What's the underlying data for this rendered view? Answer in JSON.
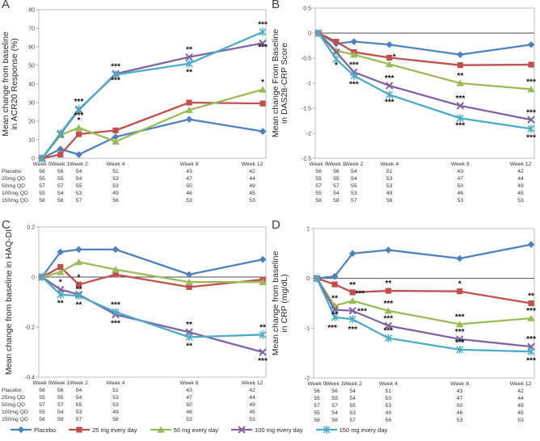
{
  "panels": {
    "a": {
      "letter": "A"
    },
    "b": {
      "letter": "B"
    },
    "c": {
      "letter": "C"
    },
    "d": {
      "letter": "D"
    }
  },
  "series_styles": {
    "placebo": {
      "color": "#4F81BD",
      "marker": "diamond"
    },
    "d25": {
      "color": "#C0504D",
      "marker": "square"
    },
    "d50": {
      "color": "#9BBB59",
      "marker": "triangle"
    },
    "d100": {
      "color": "#8064A2",
      "marker": "x"
    },
    "d150": {
      "color": "#4BACC6",
      "marker": "asterisk"
    }
  },
  "legend": {
    "items": [
      {
        "key": "placebo",
        "label": "Placebo"
      },
      {
        "key": "d25",
        "label": "25 mg every day"
      },
      {
        "key": "d50",
        "label": "50 mg every day"
      },
      {
        "key": "d100",
        "label": "100 mg every day"
      },
      {
        "key": "d150",
        "label": "150 mg every day"
      }
    ]
  },
  "table": {
    "row_labels": [
      "Placebo",
      "25mg QD",
      "50mg QD",
      "100mg QD",
      "150mg QD"
    ],
    "columns": [
      "Week 0",
      "Week 1",
      "Week 2",
      "Week 4",
      "Week 8",
      "Week 12"
    ],
    "rows": [
      [
        56,
        56,
        54,
        51,
        43,
        42
      ],
      [
        55,
        55,
        54,
        53,
        47,
        44
      ],
      [
        57,
        57,
        55,
        53,
        50,
        49
      ],
      [
        55,
        54,
        53,
        49,
        46,
        45
      ],
      [
        58,
        58,
        57,
        56,
        53,
        53
      ]
    ]
  },
  "chart_data": [
    {
      "id": "A",
      "type": "line",
      "ylabel_lines": [
        "Mean change from baseline",
        "in ACR20 Response (%)"
      ],
      "x": [
        0,
        1,
        2,
        4,
        8,
        12
      ],
      "x_labels": [
        "Week 0",
        "Week 1",
        "Week 2",
        "Week 4",
        "Week 8",
        "Week 12"
      ],
      "ylim": [
        0,
        80
      ],
      "yticks": [
        "0",
        "10",
        "20",
        "30",
        "40",
        "50",
        "60",
        "70",
        "80"
      ],
      "series": [
        {
          "key": "placebo",
          "name": "Placebo",
          "values": [
            0,
            5,
            2,
            11.5,
            21,
            14.5
          ]
        },
        {
          "key": "d25",
          "name": "25 mg every day",
          "values": [
            0,
            2,
            13,
            15,
            30,
            29.5
          ]
        },
        {
          "key": "d50",
          "name": "50 mg every day",
          "values": [
            0,
            12.5,
            16.5,
            9,
            26,
            37
          ]
        },
        {
          "key": "d100",
          "name": "100 mg every day",
          "values": [
            0,
            13,
            26,
            45.5,
            54.5,
            62
          ]
        },
        {
          "key": "d150",
          "name": "150 mg every day",
          "values": [
            0,
            13.5,
            26.5,
            45,
            51,
            68
          ]
        }
      ],
      "annotations": [
        {
          "i": 2,
          "s": "d150",
          "t": "***",
          "p": "above"
        },
        {
          "i": 2,
          "s": "d100",
          "t": "***",
          "p": "below",
          "dy": -4
        },
        {
          "i": 2,
          "s": "d50",
          "t": "*",
          "p": "above"
        },
        {
          "i": 3,
          "s": "d100",
          "t": "***",
          "p": "above"
        },
        {
          "i": 3,
          "s": "d150",
          "t": "***",
          "p": "below",
          "dy": -4
        },
        {
          "i": 4,
          "s": "d100",
          "t": "**",
          "p": "above"
        },
        {
          "i": 4,
          "s": "d150",
          "t": "**",
          "p": "below"
        },
        {
          "i": 5,
          "s": "d150",
          "t": "***",
          "p": "above"
        },
        {
          "i": 5,
          "s": "d100",
          "t": "***",
          "p": "below",
          "dy": -6
        },
        {
          "i": 5,
          "s": "d50",
          "t": "*",
          "p": "above"
        }
      ]
    },
    {
      "id": "B",
      "type": "line",
      "ylabel_lines": [
        "Mean change From Baseline",
        "in DAS28-CRP Score"
      ],
      "x": [
        0,
        1,
        2,
        4,
        8,
        12
      ],
      "x_labels": [
        "Week 0",
        "Week 1",
        "Week 2",
        "Week 4",
        "Week 8",
        "Week 12"
      ],
      "ylim": [
        -2.5,
        0.5
      ],
      "yticks": [
        "0.5",
        "0",
        "-0.5",
        "-1",
        "-1.5",
        "-2",
        "-2.5"
      ],
      "series": [
        {
          "key": "placebo",
          "name": "Placebo",
          "values": [
            0,
            -0.21,
            -0.17,
            -0.23,
            -0.43,
            -0.23
          ]
        },
        {
          "key": "d25",
          "name": "25 mg every day",
          "values": [
            0,
            -0.17,
            -0.38,
            -0.49,
            -0.64,
            -0.63
          ]
        },
        {
          "key": "d50",
          "name": "50 mg every day",
          "values": [
            0,
            -0.35,
            -0.43,
            -0.62,
            -1.0,
            -1.12
          ]
        },
        {
          "key": "d100",
          "name": "100 mg every day",
          "values": [
            0,
            -0.38,
            -0.78,
            -1.05,
            -1.45,
            -1.73
          ]
        },
        {
          "key": "d150",
          "name": "150 mg every day",
          "values": [
            0,
            -0.52,
            -0.85,
            -1.23,
            -1.7,
            -1.91
          ]
        }
      ],
      "annotations": [
        {
          "i": 1,
          "s": "d150",
          "t": "*",
          "p": "below",
          "dy": -3
        },
        {
          "i": 2,
          "s": "d100",
          "t": "***",
          "p": "above"
        },
        {
          "i": 2,
          "s": "d150",
          "t": "***",
          "p": "below"
        },
        {
          "i": 3,
          "s": "d50",
          "t": "*",
          "p": "above",
          "dx": 6
        },
        {
          "i": 3,
          "s": "d100",
          "t": "***",
          "p": "above"
        },
        {
          "i": 3,
          "s": "d150",
          "t": "***",
          "p": "below",
          "dy": -2
        },
        {
          "i": 4,
          "s": "d50",
          "t": "**",
          "p": "above"
        },
        {
          "i": 4,
          "s": "d100",
          "t": "***",
          "p": "above"
        },
        {
          "i": 4,
          "s": "d150",
          "t": "***",
          "p": "below",
          "dy": -2
        },
        {
          "i": 5,
          "s": "d50",
          "t": "***",
          "p": "above"
        },
        {
          "i": 5,
          "s": "d100",
          "t": "***",
          "p": "above"
        },
        {
          "i": 5,
          "s": "d150",
          "t": "***",
          "p": "below"
        }
      ]
    },
    {
      "id": "C",
      "type": "line",
      "ylabel_lines": [
        "Mean change from baseline in HAQ-DI"
      ],
      "x": [
        0,
        1,
        2,
        4,
        8,
        12
      ],
      "x_labels": [
        "Week 0",
        "Week 1",
        "Week 2",
        "Week 4",
        "Week 8",
        "Week 12"
      ],
      "ylim": [
        -0.4,
        0.2
      ],
      "yticks": [
        "0.2",
        "0",
        "-0.2",
        "-0.4"
      ],
      "series": [
        {
          "key": "placebo",
          "name": "Placebo",
          "values": [
            0,
            0.1,
            0.11,
            0.11,
            0.01,
            0.07
          ]
        },
        {
          "key": "d25",
          "name": "25 mg every day",
          "values": [
            0,
            0.04,
            -0.03,
            0.01,
            -0.04,
            -0.01
          ]
        },
        {
          "key": "d50",
          "name": "50 mg every day",
          "values": [
            0,
            0.02,
            0.06,
            0.03,
            -0.02,
            -0.02
          ]
        },
        {
          "key": "d100",
          "name": "100 mg every day",
          "values": [
            0,
            -0.05,
            -0.07,
            -0.15,
            -0.22,
            -0.3
          ]
        },
        {
          "key": "d150",
          "name": "150 mg every day",
          "values": [
            0,
            -0.07,
            -0.075,
            -0.14,
            -0.24,
            -0.23
          ]
        }
      ],
      "annotations": [
        {
          "i": 1,
          "s": "d100",
          "t": "*",
          "p": "above"
        },
        {
          "i": 1,
          "s": "d150",
          "t": "**",
          "p": "below"
        },
        {
          "i": 2,
          "s": "d25",
          "t": "*",
          "p": "above"
        },
        {
          "i": 2,
          "s": "d100",
          "t": "**",
          "p": "above",
          "dy": 3
        },
        {
          "i": 2,
          "s": "d150",
          "t": "**",
          "p": "below"
        },
        {
          "i": 3,
          "s": "d150",
          "t": "***",
          "p": "above"
        },
        {
          "i": 3,
          "s": "d100",
          "t": "***",
          "p": "below"
        },
        {
          "i": 4,
          "s": "d100",
          "t": "**",
          "p": "above"
        },
        {
          "i": 4,
          "s": "d150",
          "t": "**",
          "p": "below"
        },
        {
          "i": 5,
          "s": "d150",
          "t": "**",
          "p": "above"
        },
        {
          "i": 5,
          "s": "d100",
          "t": "***",
          "p": "below"
        }
      ]
    },
    {
      "id": "D",
      "type": "line",
      "ylabel_lines": [
        "Mean change from baseline",
        "in CRP (mg/dL)"
      ],
      "x": [
        0,
        1,
        2,
        4,
        8,
        12
      ],
      "x_labels": [
        "Week 0",
        "Week 1",
        "Week 2",
        "Week 4",
        "Week 8",
        "Week 12"
      ],
      "ylim": [
        -2,
        1
      ],
      "yticks": [
        "1",
        "0",
        "-1",
        "-2"
      ],
      "series": [
        {
          "key": "placebo",
          "name": "Placebo",
          "values": [
            0,
            0.04,
            0.5,
            0.57,
            0.4,
            0.68
          ]
        },
        {
          "key": "d25",
          "name": "25 mg every day",
          "values": [
            0,
            -0.12,
            -0.28,
            -0.25,
            -0.26,
            -0.5
          ]
        },
        {
          "key": "d50",
          "name": "50 mg every day",
          "values": [
            0,
            -0.55,
            -0.45,
            -0.65,
            -0.92,
            -0.8
          ]
        },
        {
          "key": "d100",
          "name": "100 mg every day",
          "values": [
            0,
            -0.63,
            -0.65,
            -0.95,
            -1.22,
            -1.37
          ]
        },
        {
          "key": "d150",
          "name": "150 mg every day",
          "values": [
            0,
            -0.78,
            -0.82,
            -1.2,
            -1.43,
            -1.47
          ]
        }
      ],
      "annotations": [
        {
          "i": 1,
          "s": "d50",
          "t": "**",
          "p": "above"
        },
        {
          "i": 1,
          "s": "d100",
          "t": "**",
          "p": "below",
          "dy": -5
        },
        {
          "i": 1,
          "s": "d150",
          "t": "***",
          "p": "below",
          "dy": 2,
          "dx": -3
        },
        {
          "i": 2,
          "s": "d25",
          "t": "**",
          "p": "above"
        },
        {
          "i": 2,
          "s": "d50",
          "t": "***",
          "p": "above",
          "dx": 9
        },
        {
          "i": 2,
          "s": "d100",
          "t": "***",
          "p": "right"
        },
        {
          "i": 2,
          "s": "d150",
          "t": "***",
          "p": "below",
          "dy": 2
        },
        {
          "i": 3,
          "s": "d25",
          "t": "**",
          "p": "above"
        },
        {
          "i": 3,
          "s": "d50",
          "t": "***",
          "p": "above"
        },
        {
          "i": 3,
          "s": "d100",
          "t": "***",
          "p": "above"
        },
        {
          "i": 3,
          "s": "d150",
          "t": "***",
          "p": "above"
        },
        {
          "i": 4,
          "s": "d25",
          "t": "*",
          "p": "above"
        },
        {
          "i": 4,
          "s": "d50",
          "t": "***",
          "p": "above"
        },
        {
          "i": 4,
          "s": "d100",
          "t": "***",
          "p": "above"
        },
        {
          "i": 4,
          "s": "d150",
          "t": "***",
          "p": "above"
        },
        {
          "i": 5,
          "s": "d25",
          "t": "**",
          "p": "above"
        },
        {
          "i": 5,
          "s": "d50",
          "t": "***",
          "p": "above"
        },
        {
          "i": 5,
          "s": "d100",
          "t": "***",
          "p": "above"
        },
        {
          "i": 5,
          "s": "d150",
          "t": "***",
          "p": "below"
        }
      ]
    }
  ]
}
